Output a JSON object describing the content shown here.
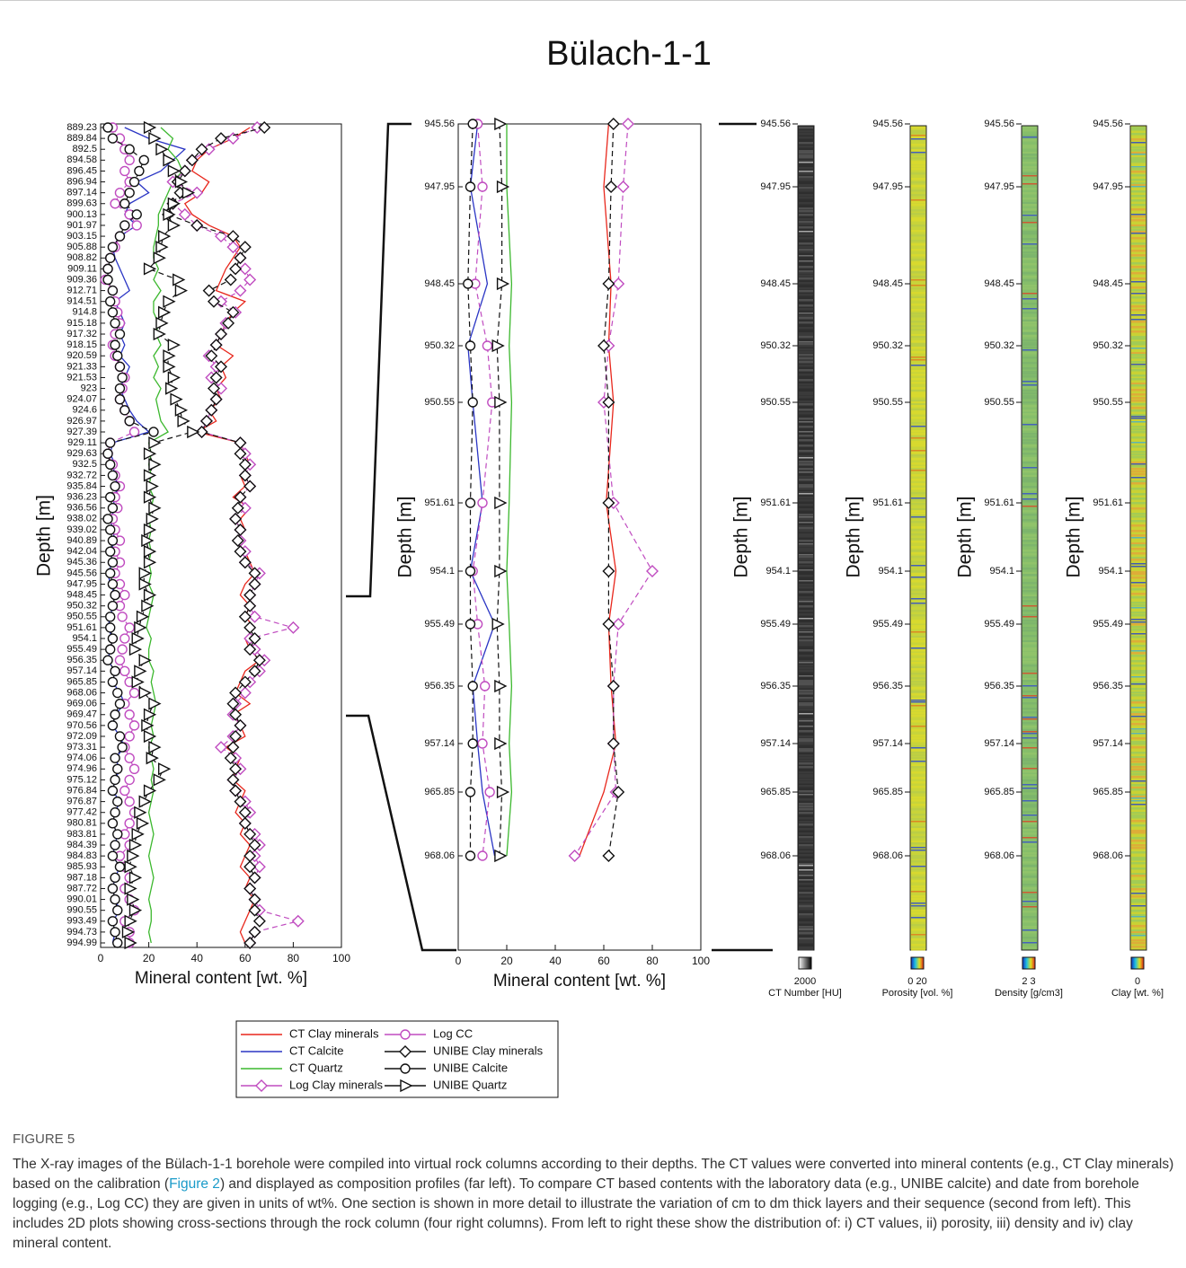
{
  "title": "Bülach-1-1",
  "overview": {
    "y_label": "Depth [m]",
    "x_label": "Mineral content [wt. %]",
    "xlim": [
      0,
      100
    ],
    "xticks": [
      0,
      20,
      40,
      60,
      80,
      100
    ],
    "categories": [
      "889.23",
      "889.84",
      "892.5",
      "894.58",
      "896.45",
      "896.94",
      "897.14",
      "899.63",
      "900.13",
      "901.97",
      "903.15",
      "905.88",
      "908.82",
      "909.11",
      "909.36",
      "912.71",
      "914.51",
      "914.8",
      "915.18",
      "917.32",
      "918.15",
      "920.59",
      "921.33",
      "921.53",
      "923",
      "924.07",
      "924.6",
      "926.97",
      "927.39",
      "929.11",
      "929.63",
      "932.5",
      "932.72",
      "935.84",
      "936.23",
      "936.56",
      "938.02",
      "939.02",
      "940.89",
      "942.04",
      "945.36",
      "945.56",
      "947.95",
      "948.45",
      "950.32",
      "950.55",
      "951.61",
      "954.1",
      "955.49",
      "956.35",
      "957.14",
      "965.85",
      "968.06",
      "969.06",
      "969.47",
      "970.56",
      "972.09",
      "973.31",
      "974.06",
      "974.96",
      "975.12",
      "976.84",
      "976.87",
      "977.42",
      "980.81",
      "983.81",
      "984.39",
      "984.83",
      "985.93",
      "987.18",
      "987.72",
      "990.01",
      "990.55",
      "993.49",
      "994.73",
      "994.99"
    ],
    "series": [
      {
        "name": "CT Clay minerals",
        "color": "#e8271c",
        "marker": "none",
        "dash": "none",
        "values": [
          62,
          55,
          45,
          40,
          38,
          45,
          42,
          35,
          38,
          45,
          55,
          58,
          55,
          52,
          50,
          48,
          60,
          55,
          52,
          50,
          48,
          55,
          50,
          52,
          48,
          50,
          45,
          48,
          40,
          58,
          60,
          62,
          58,
          60,
          55,
          62,
          58,
          60,
          56,
          60,
          62,
          64,
          60,
          58,
          62,
          60,
          64,
          60,
          62,
          66,
          60,
          58,
          56,
          62,
          55,
          58,
          60,
          52,
          58,
          56,
          55,
          60,
          58,
          56,
          60,
          58,
          62,
          60,
          58,
          62,
          60,
          64,
          62,
          60,
          58,
          60
        ]
      },
      {
        "name": "CT Calcite",
        "color": "#2a35c4",
        "marker": "none",
        "dash": "none",
        "values": [
          10,
          20,
          35,
          30,
          25,
          15,
          20,
          12,
          10,
          15,
          8,
          5,
          6,
          8,
          10,
          12,
          6,
          8,
          10,
          8,
          10,
          8,
          12,
          10,
          8,
          10,
          12,
          15,
          20,
          5,
          4,
          6,
          5,
          8,
          5,
          6,
          4,
          5,
          6,
          4,
          5,
          3,
          4,
          6,
          5,
          4,
          3,
          5,
          4,
          3,
          6,
          5,
          8,
          10,
          6,
          5,
          8,
          10,
          6,
          8,
          6,
          5,
          8,
          6,
          5,
          7,
          6,
          5,
          8,
          6,
          5,
          6,
          8,
          5,
          6,
          5
        ]
      },
      {
        "name": "CT Quartz",
        "color": "#3cb82e",
        "marker": "none",
        "dash": "none",
        "values": [
          25,
          30,
          28,
          32,
          34,
          30,
          28,
          26,
          24,
          24,
          23,
          22,
          22,
          24,
          22,
          25,
          22,
          22,
          24,
          23,
          25,
          22,
          24,
          22,
          25,
          23,
          24,
          25,
          28,
          20,
          21,
          20,
          21,
          20,
          22,
          21,
          20,
          21,
          20,
          21,
          20,
          21,
          20,
          22,
          21,
          20,
          19,
          21,
          20,
          20,
          22,
          21,
          22,
          23,
          22,
          21,
          22,
          20,
          21,
          22,
          21,
          22,
          21,
          20,
          21,
          22,
          21,
          20,
          21,
          22,
          21,
          20,
          21,
          21,
          20,
          21
        ]
      },
      {
        "name": "Log Clay minerals",
        "color": "#c04cc0",
        "marker": "diamond",
        "dash": "6 4",
        "values": [
          65,
          55,
          45,
          38,
          35,
          30,
          40,
          30,
          35,
          40,
          50,
          55,
          58,
          60,
          62,
          58,
          50,
          56,
          52,
          50,
          48,
          45,
          48,
          46,
          50,
          48,
          46,
          44,
          42,
          58,
          60,
          62,
          60,
          62,
          58,
          60,
          56,
          58,
          58,
          60,
          60,
          66,
          64,
          62,
          62,
          64,
          80,
          62,
          64,
          68,
          66,
          62,
          60,
          56,
          55,
          58,
          55,
          50,
          56,
          58,
          55,
          56,
          60,
          62,
          60,
          64,
          66,
          64,
          66,
          64,
          62,
          64,
          66,
          82,
          64,
          62
        ]
      },
      {
        "name": "Log CC",
        "color": "#c04cc0",
        "marker": "circle",
        "dash": "6 4",
        "values": [
          5,
          8,
          10,
          12,
          10,
          12,
          8,
          6,
          12,
          15,
          8,
          6,
          4,
          3,
          2,
          5,
          6,
          7,
          8,
          6,
          5,
          6,
          8,
          10,
          9,
          8,
          10,
          12,
          14,
          4,
          3,
          5,
          6,
          8,
          6,
          7,
          5,
          6,
          8,
          6,
          8,
          6,
          8,
          10,
          8,
          9,
          12,
          10,
          9,
          8,
          10,
          12,
          14,
          10,
          12,
          14,
          12,
          10,
          12,
          14,
          12,
          10,
          12,
          14,
          12,
          10,
          12,
          8,
          10,
          12,
          10,
          12,
          14,
          10,
          12,
          12
        ]
      },
      {
        "name": "UNIBE Clay minerals",
        "color": "#111111",
        "marker": "diamond",
        "dash": "6 4",
        "values": [
          68,
          50,
          42,
          38,
          35,
          32,
          33,
          30,
          28,
          40,
          55,
          60,
          58,
          56,
          54,
          45,
          47,
          55,
          53,
          50,
          48,
          46,
          50,
          48,
          47,
          48,
          46,
          44,
          42,
          58,
          58,
          60,
          60,
          62,
          58,
          57,
          56,
          58,
          57,
          58,
          60,
          64,
          64,
          62,
          62,
          60,
          62,
          64,
          62,
          66,
          64,
          60,
          56,
          55,
          56,
          58,
          56,
          55,
          54,
          56,
          55,
          56,
          58,
          60,
          60,
          62,
          64,
          62,
          62,
          64,
          62,
          64,
          64,
          66,
          64,
          62
        ]
      },
      {
        "name": "UNIBE Calcite",
        "color": "#111111",
        "marker": "circle",
        "dash": "6 4",
        "values": [
          3,
          5,
          12,
          18,
          16,
          14,
          12,
          10,
          15,
          10,
          8,
          5,
          4,
          3,
          3,
          5,
          4,
          5,
          6,
          8,
          6,
          7,
          8,
          9,
          8,
          8,
          10,
          12,
          22,
          4,
          3,
          4,
          5,
          6,
          4,
          5,
          3,
          4,
          5,
          4,
          5,
          4,
          5,
          6,
          5,
          4,
          4,
          5,
          4,
          3,
          6,
          5,
          7,
          8,
          6,
          5,
          8,
          9,
          6,
          7,
          6,
          5,
          7,
          6,
          5,
          7,
          6,
          5,
          8,
          6,
          5,
          6,
          7,
          5,
          6,
          7
        ]
      },
      {
        "name": "UNIBE Quartz",
        "color": "#111111",
        "marker": "triangle",
        "dash": "6 4",
        "values": [
          20,
          22,
          25,
          28,
          30,
          33,
          36,
          30,
          28,
          30,
          26,
          25,
          24,
          20,
          32,
          33,
          28,
          26,
          25,
          24,
          30,
          28,
          28,
          30,
          29,
          31,
          33,
          34,
          38,
          22,
          20,
          22,
          20,
          21,
          20,
          22,
          21,
          20,
          19,
          20,
          20,
          18,
          18,
          20,
          19,
          17,
          16,
          15,
          14,
          18,
          16,
          15,
          18,
          22,
          20,
          19,
          20,
          22,
          21,
          26,
          24,
          20,
          18,
          16,
          17,
          15,
          14,
          13,
          12,
          14,
          12,
          13,
          14,
          12,
          11,
          12
        ]
      }
    ]
  },
  "detail": {
    "y_label": "Depth [m]",
    "x_label": "Mineral content [wt. %]",
    "xlim": [
      0,
      100
    ],
    "xticks": [
      0,
      20,
      40,
      60,
      80,
      100
    ],
    "categories": [
      "945.56",
      "947.95",
      "948.45",
      "950.32",
      "950.55",
      "951.61",
      "954.1",
      "955.49",
      "956.35",
      "957.14",
      "965.85",
      "968.06"
    ],
    "series": [
      {
        "color": "#e8271c",
        "marker": "none",
        "dash": "none",
        "values": [
          62,
          60,
          63,
          62,
          64,
          61,
          65,
          62,
          63,
          65,
          60,
          50
        ]
      },
      {
        "color": "#2a35c4",
        "marker": "none",
        "dash": "none",
        "values": [
          8,
          5,
          12,
          4,
          6,
          10,
          5,
          15,
          6,
          8,
          10,
          15
        ]
      },
      {
        "color": "#3cb82e",
        "marker": "none",
        "dash": "none",
        "values": [
          20,
          20,
          22,
          21,
          22,
          21,
          20,
          21,
          22,
          21,
          22,
          20
        ]
      },
      {
        "color": "#c04cc0",
        "marker": "diamond",
        "dash": "6 4",
        "values": [
          70,
          68,
          66,
          62,
          60,
          64,
          80,
          66,
          64,
          64,
          65,
          48
        ]
      },
      {
        "color": "#c04cc0",
        "marker": "circle",
        "dash": "6 4",
        "values": [
          8,
          10,
          7,
          12,
          14,
          10,
          6,
          8,
          11,
          10,
          13,
          10
        ]
      },
      {
        "color": "#111111",
        "marker": "diamond",
        "dash": "6 4",
        "values": [
          64,
          63,
          62,
          60,
          62,
          62,
          62,
          62,
          64,
          64,
          66,
          62
        ]
      },
      {
        "color": "#111111",
        "marker": "circle",
        "dash": "6 4",
        "values": [
          6,
          5,
          4,
          5,
          6,
          5,
          5,
          5,
          6,
          6,
          5,
          5
        ]
      },
      {
        "color": "#111111",
        "marker": "triangle",
        "dash": "6 4",
        "values": [
          17,
          18,
          18,
          16,
          17,
          17,
          17,
          16,
          17,
          17,
          18,
          17
        ]
      }
    ]
  },
  "images": [
    {
      "y_label": "Depth [m]",
      "palette": "gray",
      "colorbar_ticks": "2000",
      "colorbar_label": "CT Number [HU]",
      "categories": [
        "945.56",
        "947.95",
        "948.45",
        "950.32",
        "950.55",
        "951.61",
        "954.1",
        "955.49",
        "956.35",
        "957.14",
        "965.85",
        "968.06"
      ]
    },
    {
      "y_label": "Depth [m]",
      "palette": "yellow",
      "colorbar_ticks": "0 20",
      "colorbar_label": "Porosity [vol. %]",
      "categories": [
        "945.56",
        "947.95",
        "948.45",
        "950.32",
        "950.55",
        "951.61",
        "954.1",
        "955.49",
        "956.35",
        "957.14",
        "965.85",
        "968.06"
      ]
    },
    {
      "y_label": "Depth [m]",
      "palette": "green",
      "colorbar_ticks": "2 3",
      "colorbar_label": "Density [g/cm3]",
      "categories": [
        "945.56",
        "947.95",
        "948.45",
        "950.32",
        "950.55",
        "951.61",
        "954.1",
        "955.49",
        "956.35",
        "957.14",
        "965.85",
        "968.06"
      ]
    },
    {
      "y_label": "Depth [m]",
      "palette": "clay",
      "colorbar_ticks": "0",
      "colorbar_label": "Clay [wt. %]",
      "categories": [
        "945.56",
        "947.95",
        "948.45",
        "950.32",
        "950.55",
        "951.61",
        "954.1",
        "955.49",
        "956.35",
        "957.14",
        "965.85",
        "968.06"
      ]
    }
  ],
  "caption": {
    "label": "FIGURE 5",
    "text_before": "The X-ray images of the Bülach-1-1 borehole were compiled into virtual rock columns according to their depths. The CT values were converted into mineral contents (e.g., CT Clay minerals) based on the calibration (",
    "link": "Figure 2",
    "text_after": ") and displayed as composition profiles (far left). To compare CT based contents with the laboratory data (e.g., UNIBE calcite) and date from borehole logging (e.g., Log CC) they are given in units of wt%. One section is shown in more detail to illustrate the variation of cm to dm thick layers and their sequence (second from left). This includes 2D plots showing cross-sections through the rock column (four right columns). From left to right these show the distribution of: i) CT values, ii) porosity, iii) density and iv) clay mineral content."
  }
}
